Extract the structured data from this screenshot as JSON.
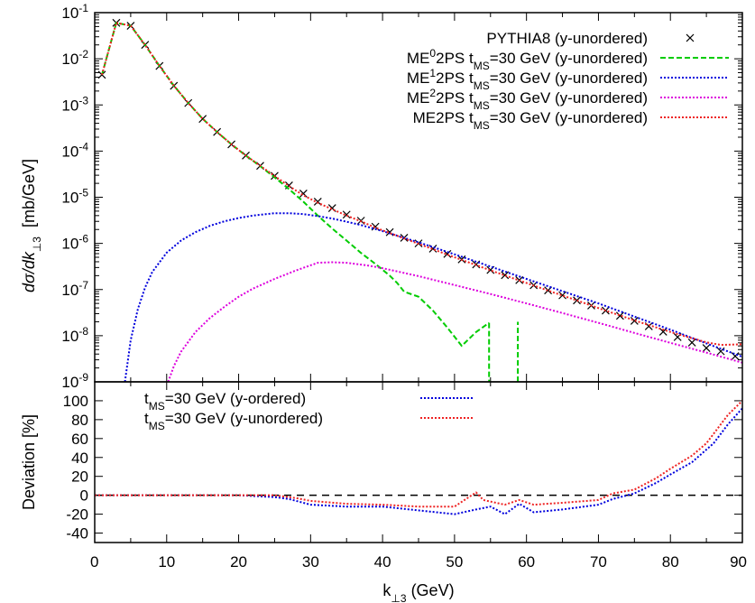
{
  "chart_data": [
    {
      "type": "line",
      "panel": "top",
      "ylabel_parts": [
        "dσ/dk",
        "⊥3",
        "[mb/GeV]"
      ],
      "xlabel": "",
      "xlim": [
        0,
        90
      ],
      "ylim": [
        1e-09,
        0.1
      ],
      "yscale": "log",
      "x_ticks": [
        "0",
        "10",
        "20",
        "30",
        "40",
        "50",
        "60",
        "70",
        "80",
        "90"
      ],
      "y_ticks": [
        {
          "base": "10",
          "exp": "-9",
          "value": 1e-09
        },
        {
          "base": "10",
          "exp": "-8",
          "value": 1e-08
        },
        {
          "base": "10",
          "exp": "-7",
          "value": 1e-07
        },
        {
          "base": "10",
          "exp": "-6",
          "value": 1e-06
        },
        {
          "base": "10",
          "exp": "-5",
          "value": 1e-05
        },
        {
          "base": "10",
          "exp": "-4",
          "value": 0.0001
        },
        {
          "base": "10",
          "exp": "-3",
          "value": 0.001
        },
        {
          "base": "10",
          "exp": "-2",
          "value": 0.01
        },
        {
          "base": "10",
          "exp": "-1",
          "value": 0.1
        }
      ],
      "legend_position": "top-right",
      "series": [
        {
          "name": "PYTHIA8 (y-unordered)",
          "legend_parts": [
            {
              "t": "PYTHIA8 (y-unordered)"
            }
          ],
          "style": "marker-x",
          "color": "#000000",
          "x": [
            1,
            3,
            5,
            7,
            9,
            11,
            13,
            15,
            17,
            19,
            21,
            23,
            25,
            27,
            29,
            31,
            33,
            35,
            37,
            39,
            41,
            43,
            45,
            47,
            49,
            51,
            53,
            55,
            57,
            59,
            61,
            63,
            65,
            67,
            69,
            71,
            73,
            75,
            77,
            79,
            81,
            83,
            85,
            87,
            89
          ],
          "y": [
            0.0045,
            0.06,
            0.052,
            0.02,
            0.007,
            0.0026,
            0.0011,
            0.0005,
            0.00026,
            0.00014,
            8e-05,
            4.8e-05,
            2.9e-05,
            1.8e-05,
            1.2e-05,
            8e-06,
            5.8e-06,
            4.2e-06,
            3.1e-06,
            2.3e-06,
            1.75e-06,
            1.32e-06,
            1e-06,
            7.7e-07,
            5.9e-07,
            4.5e-07,
            3.5e-07,
            2.65e-07,
            2.05e-07,
            1.6e-07,
            1.24e-07,
            9.6e-08,
            7.5e-08,
            5.8e-08,
            4.5e-08,
            3.5e-08,
            2.7e-08,
            2.1e-08,
            1.6e-08,
            1.22e-08,
            9.3e-09,
            7.1e-09,
            5.4e-09,
            4.6e-09,
            3.6e-09
          ]
        },
        {
          "name": "ME02PS tMS=30 GeV (y-unordered)",
          "legend_parts": [
            {
              "t": "ME"
            },
            {
              "t": "0",
              "sup": true
            },
            {
              "t": "2PS t"
            },
            {
              "t": "MS",
              "sub": true
            },
            {
              "t": "=30 GeV (y-unordered)"
            }
          ],
          "style": "dashed",
          "color": "#00cc00",
          "segments": [
            {
              "x": [
                1,
                3,
                5,
                7,
                9,
                11,
                13,
                15,
                17,
                19,
                21,
                23,
                25,
                27,
                29,
                31,
                33,
                35,
                37,
                39,
                41,
                42,
                43,
                45,
                47,
                49,
                51,
                53,
                54.8
              ],
              "y": [
                0.0045,
                0.06,
                0.052,
                0.02,
                0.007,
                0.0026,
                0.0011,
                0.0005,
                0.00026,
                0.00014,
                8e-05,
                4.7e-05,
                2.7e-05,
                1.5e-05,
                8e-06,
                4e-06,
                2.1e-06,
                1.15e-06,
                6.2e-07,
                3.6e-07,
                2e-07,
                1.4e-07,
                9e-08,
                7e-08,
                3.5e-08,
                1.5e-08,
                6e-09,
                1.2e-08,
                1.9e-08
              ]
            },
            {
              "x": [
                54.8,
                54.8
              ],
              "y": [
                1.9e-08,
                1e-09
              ]
            },
            {
              "x": [
                58.8,
                58.8
              ],
              "y": [
                1e-09,
                2e-08
              ]
            }
          ]
        },
        {
          "name": "ME12PS tMS=30 GeV (y-unordered)",
          "legend_parts": [
            {
              "t": "ME"
            },
            {
              "t": "1",
              "sup": true
            },
            {
              "t": "2PS t"
            },
            {
              "t": "MS",
              "sub": true
            },
            {
              "t": "=30 GeV (y-unordered)"
            }
          ],
          "style": "dotted",
          "color": "#0000dd",
          "x": [
            4.2,
            5,
            6,
            7,
            8,
            10,
            12,
            14,
            16,
            18,
            20,
            22,
            25,
            27,
            29,
            31,
            33,
            35,
            37,
            40,
            45,
            50,
            55,
            60,
            65,
            70,
            75,
            80,
            85,
            90
          ],
          "y": [
            1e-09,
            8e-09,
            3.8e-08,
            1.1e-07,
            2.4e-07,
            6.3e-07,
            1.15e-06,
            1.75e-06,
            2.4e-06,
            3e-06,
            3.55e-06,
            4e-06,
            4.5e-06,
            4.5e-06,
            4.3e-06,
            3.9e-06,
            3.45e-06,
            2.95e-06,
            2.5e-06,
            1.85e-06,
            1.05e-06,
            5.8e-07,
            3.15e-07,
            1.7e-07,
            9.2e-08,
            5e-08,
            2.6e-08,
            1.35e-08,
            6.8e-09,
            3.5e-09
          ]
        },
        {
          "name": "ME22PS tMS=30 GeV (y-unordered)",
          "legend_parts": [
            {
              "t": "ME"
            },
            {
              "t": "2",
              "sup": true
            },
            {
              "t": "2PS t"
            },
            {
              "t": "MS",
              "sub": true
            },
            {
              "t": "=30 GeV (y-unordered)"
            }
          ],
          "style": "dotted",
          "color": "#dd00dd",
          "x": [
            10.2,
            11,
            12,
            14,
            16,
            18,
            20,
            22,
            25,
            28,
            31,
            33,
            35,
            38,
            40,
            45,
            50,
            55,
            60,
            65,
            70,
            75,
            80,
            85,
            90
          ],
          "y": [
            1e-09,
            2.2e-09,
            4.5e-09,
            1.2e-08,
            2.4e-08,
            4.2e-08,
            7e-08,
            1.05e-07,
            1.7e-07,
            2.6e-07,
            3.8e-07,
            3.9e-07,
            3.8e-07,
            3.3e-07,
            2.9e-07,
            1.95e-07,
            1.25e-07,
            8e-08,
            5e-08,
            3.1e-08,
            1.9e-08,
            1.15e-08,
            7e-09,
            4.3e-09,
            2.6e-09
          ]
        },
        {
          "name": "ME2PS tMS=30 GeV (y-unordered)",
          "legend_parts": [
            {
              "t": "ME2PS t"
            },
            {
              "t": "MS",
              "sub": true
            },
            {
              "t": "=30 GeV (y-unordered)"
            }
          ],
          "style": "dotted",
          "color": "#ee2222",
          "x": [
            1,
            3,
            5,
            7,
            9,
            11,
            13,
            15,
            17,
            19,
            21,
            23,
            25,
            27,
            29,
            31,
            33,
            35,
            37,
            39,
            41,
            43,
            45,
            47,
            49,
            51,
            53,
            55,
            57,
            59,
            61,
            63,
            65,
            67,
            69,
            71,
            73,
            75,
            77,
            79,
            81,
            83,
            85,
            87,
            90
          ],
          "y": [
            0.0045,
            0.06,
            0.052,
            0.02,
            0.007,
            0.0026,
            0.0011,
            0.0005,
            0.00026,
            0.00014,
            8e-05,
            4.8e-05,
            2.9e-05,
            1.75e-05,
            1.1e-05,
            7.6e-06,
            5.5e-06,
            4e-06,
            3e-06,
            2.2e-06,
            1.68e-06,
            1.28e-06,
            9.8e-07,
            7.5e-07,
            5.7e-07,
            4.4e-07,
            3.4e-07,
            2.6e-07,
            2.02e-07,
            1.57e-07,
            1.22e-07,
            9.5e-08,
            7.4e-08,
            5.8e-08,
            4.5e-08,
            3.5e-08,
            2.75e-08,
            2.15e-08,
            1.7e-08,
            1.35e-08,
            1.08e-08,
            8.8e-09,
            7.2e-09,
            6.3e-09,
            6.5e-09
          ]
        }
      ]
    },
    {
      "type": "line",
      "panel": "bottom",
      "xlabel_parts": [
        "k",
        "⊥3",
        " (GeV)"
      ],
      "ylabel": "Deviation [%]",
      "xlim": [
        0,
        90
      ],
      "ylim": [
        -50,
        120
      ],
      "x_ticks": [
        "0",
        "10",
        "20",
        "30",
        "40",
        "50",
        "60",
        "70",
        "80",
        "90"
      ],
      "y_ticks": [
        "-40",
        "-20",
        "0",
        "20",
        "40",
        "60",
        "80",
        "100"
      ],
      "legend_position": "top-left",
      "reference_line": {
        "y": 0,
        "style": "dashed",
        "color": "#000000"
      },
      "series": [
        {
          "name": "tMS=30 GeV (y-ordered)",
          "legend_parts": [
            {
              "t": "t"
            },
            {
              "t": "MS",
              "sub": true
            },
            {
              "t": "=30 GeV (y-ordered)"
            }
          ],
          "style": "dotted",
          "color": "#0000dd",
          "x": [
            0,
            10,
            20,
            25,
            27,
            30,
            35,
            40,
            45,
            50,
            53,
            55,
            57,
            59,
            61,
            65,
            70,
            72,
            75,
            78,
            80,
            83,
            86,
            88,
            90
          ],
          "y": [
            0,
            0,
            0,
            -2,
            -4,
            -10,
            -12,
            -12,
            -16,
            -20,
            -15,
            -12,
            -20,
            -9,
            -18,
            -15,
            -10,
            -4,
            2,
            13,
            22,
            35,
            55,
            75,
            92
          ]
        },
        {
          "name": "tMS=30 GeV (y-unordered)",
          "legend_parts": [
            {
              "t": "t"
            },
            {
              "t": "MS",
              "sub": true
            },
            {
              "t": "=30 GeV (y-unordered)"
            }
          ],
          "style": "dotted",
          "color": "#ee2222",
          "x": [
            0,
            10,
            20,
            25,
            28,
            30,
            35,
            40,
            45,
            50,
            52,
            53,
            54,
            57,
            59,
            61,
            65,
            70,
            72,
            75,
            78,
            80,
            83,
            85,
            88,
            90
          ],
          "y": [
            0,
            0,
            0,
            0,
            -3,
            -6,
            -9,
            -10,
            -12,
            -12,
            -2,
            3,
            -5,
            -10,
            -5,
            -10,
            -8,
            -5,
            2,
            6,
            18,
            28,
            42,
            55,
            85,
            100
          ]
        }
      ]
    }
  ]
}
